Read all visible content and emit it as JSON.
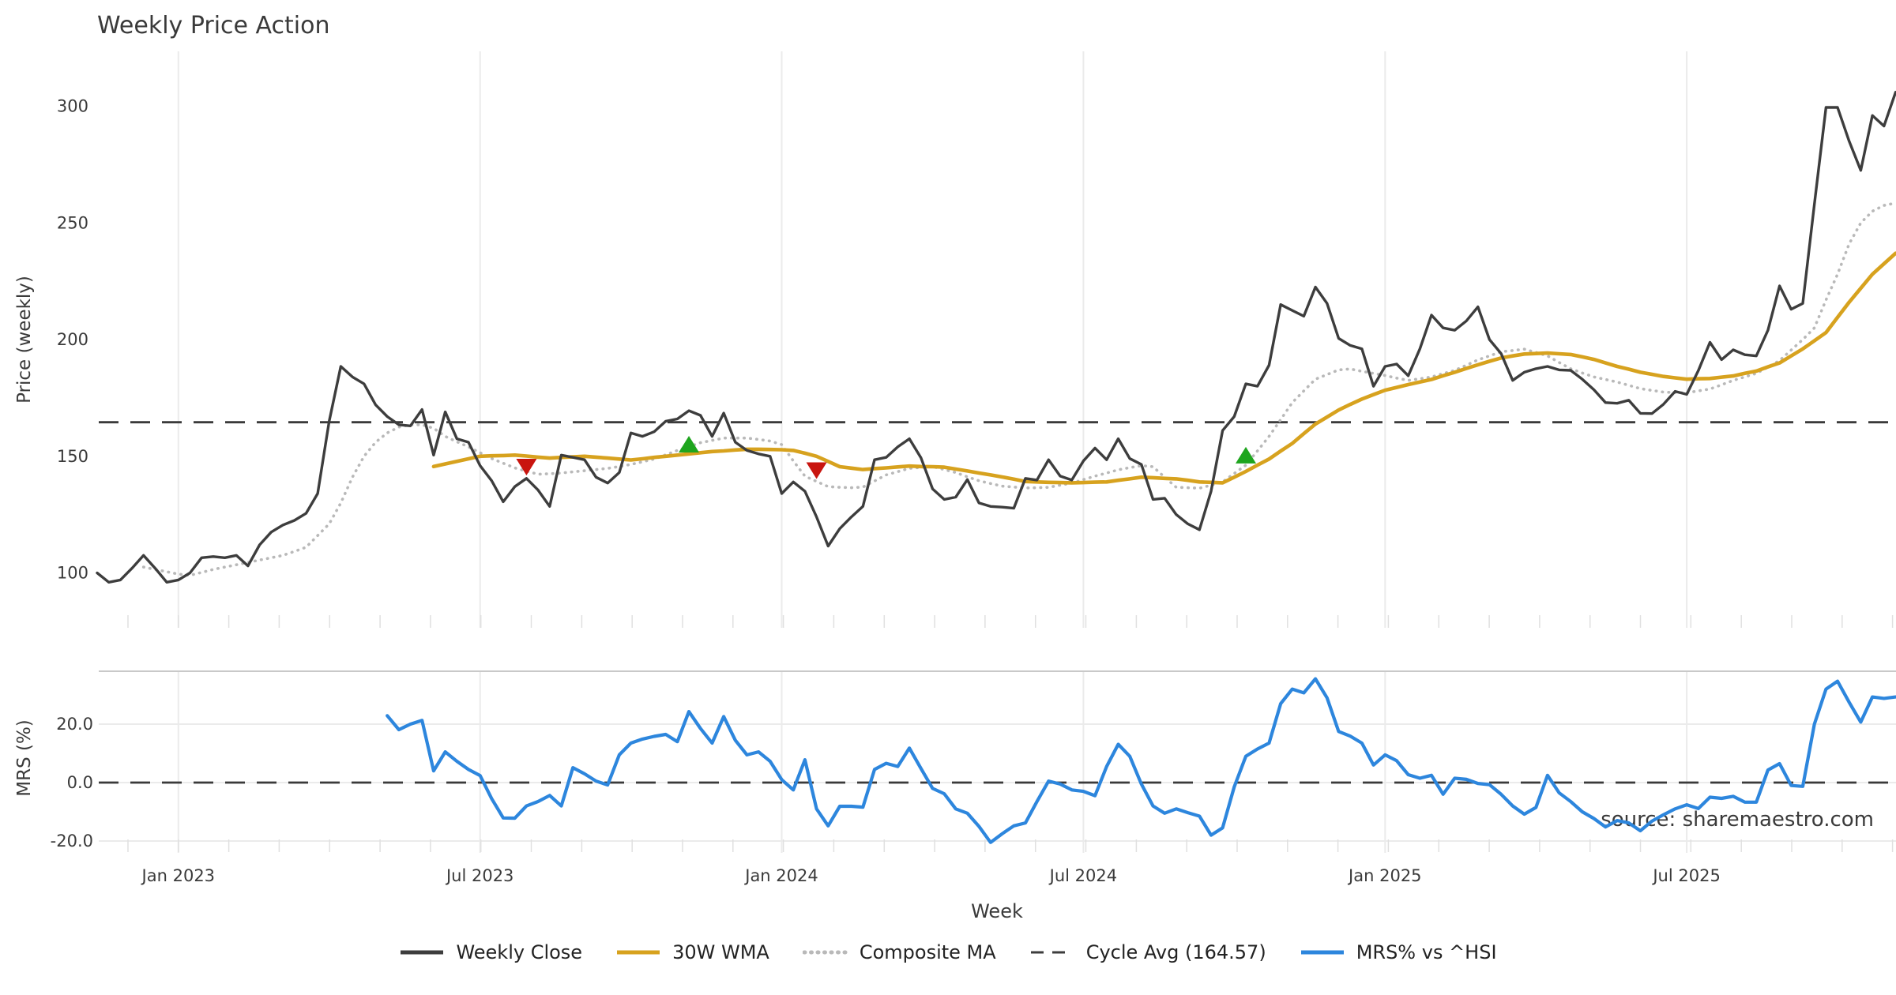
{
  "title": "Weekly Price Action",
  "source_note": "source: sharemaestro.com",
  "x_axis": {
    "label": "Week",
    "ticks": [
      {
        "label": "Jan 2023",
        "week": 7
      },
      {
        "label": "Jul 2023",
        "week": 33
      },
      {
        "label": "Jan 2024",
        "week": 59
      },
      {
        "label": "Jul 2024",
        "week": 85
      },
      {
        "label": "Jan 2025",
        "week": 111
      },
      {
        "label": "Jul 2025",
        "week": 137
      }
    ]
  },
  "price_panel": {
    "y_label": "Price (weekly)",
    "y_ticks": [
      {
        "label": "100",
        "value": 100
      },
      {
        "label": "150",
        "value": 150
      },
      {
        "label": "200",
        "value": 200
      },
      {
        "label": "250",
        "value": 250
      },
      {
        "label": "300",
        "value": 300
      }
    ]
  },
  "mrs_panel": {
    "y_label": "MRS (%)",
    "y_ticks": [
      {
        "label": "-20.0",
        "value": -20
      },
      {
        "label": "0.0",
        "value": 0
      },
      {
        "label": "20.0",
        "value": 20
      }
    ]
  },
  "legend": {
    "items": [
      {
        "label": "Weekly Close",
        "color": "#3d3d3d",
        "style": "solid"
      },
      {
        "label": "30W WMA",
        "color": "#d7a21e",
        "style": "solid"
      },
      {
        "label": "Composite MA",
        "color": "#b9b9b9",
        "style": "dotted"
      },
      {
        "label": "Cycle Avg (164.57)",
        "color": "#3d3d3d",
        "style": "dashed"
      },
      {
        "label": "MRS% vs ^HSI",
        "color": "#2d86dd",
        "style": "solid"
      }
    ]
  },
  "colors": {
    "weekly_close": "#3d3d3d",
    "wma": "#d7a21e",
    "composite": "#b9b9b9",
    "cycle_avg": "#3a3a3a",
    "mrs": "#2d86dd",
    "buy_marker": "#1ea51e",
    "sell_marker": "#c9150f",
    "grid": "#ebebeb",
    "spine": "#c9c9c9",
    "minor_tick": "#e0e0e0",
    "source_text": "#a9a9a9"
  },
  "chart_data": [
    {
      "type": "line",
      "title": "Weekly Price Action",
      "ylabel": "Price (weekly)",
      "xlabel": "Week",
      "ylim": [
        74,
        322
      ],
      "x_unit": "weekly index, week 0 = mid-Nov 2022, ticks every 26 weeks",
      "grid": "vertical-only",
      "cycle_avg": 164.57,
      "series": [
        {
          "name": "Weekly Close",
          "style": "solid",
          "start_week": 0,
          "values": [
            100,
            96,
            97,
            102,
            107.5,
            102,
            96,
            97,
            100,
            106.5,
            107,
            106.5,
            107.5,
            103,
            112,
            117.5,
            120.5,
            122.5,
            125.5,
            134,
            165,
            188.5,
            184,
            181,
            172,
            167,
            163.5,
            163,
            170,
            150.5,
            169,
            157.5,
            156,
            146,
            139.5,
            130.5,
            137,
            140.5,
            135.5,
            128.5,
            150.5,
            149.5,
            148.5,
            141,
            138.5,
            143,
            160,
            158.5,
            160.5,
            165,
            166,
            169.5,
            167.5,
            158.5,
            168.5,
            156,
            152.5,
            151,
            150,
            134,
            139,
            135,
            124,
            111.5,
            119,
            124,
            128.5,
            148.5,
            149.5,
            154,
            157.5,
            149.3,
            136,
            131.5,
            132.5,
            140,
            130,
            128.5,
            128.2,
            127.7,
            140.5,
            139.8,
            148.5,
            141.5,
            139.8,
            148,
            153.5,
            148.5,
            157.5,
            149,
            146.5,
            131.5,
            132,
            125,
            121,
            118.5,
            135,
            161,
            167,
            181,
            180,
            189,
            215,
            212.5,
            210,
            222.5,
            215.5,
            200.5,
            197.5,
            196,
            180,
            188.5,
            189.5,
            184.5,
            196,
            210.5,
            205,
            204,
            208,
            214,
            200,
            194,
            182.5,
            186,
            187.5,
            188.5,
            187,
            186.8,
            183,
            178.5,
            173,
            172.7,
            174,
            168.4,
            168.3,
            172.3,
            177.8,
            176.5,
            186.7,
            198.8,
            191.4,
            195.6,
            193.5,
            193,
            204,
            223,
            213,
            215.5,
            258,
            299.5,
            299.5,
            285,
            272.5,
            296,
            291.5,
            306
          ]
        },
        {
          "name": "30W WMA",
          "style": "solid",
          "start_week": 29,
          "values": [
            145.6,
            146.7,
            147.8,
            148.9,
            150,
            150.2,
            150.3,
            150.5,
            150.1,
            149.6,
            149.2,
            149.5,
            149.7,
            150,
            149.6,
            149.2,
            148.8,
            148.4,
            148.9,
            149.5,
            150,
            150.5,
            151,
            151.5,
            152,
            152.3,
            152.7,
            153,
            153,
            152.9,
            152.8,
            152.5,
            151.3,
            150,
            147.8,
            145.5,
            144.9,
            144.3,
            144.7,
            145,
            145.4,
            145.8,
            145.6,
            145.5,
            145.3,
            144.5,
            143.7,
            142.8,
            142,
            141.1,
            140.2,
            139.2,
            139,
            138.8,
            138.7,
            138.6,
            138.7,
            138.9,
            139,
            139.7,
            140.3,
            141,
            140.8,
            140.5,
            140.3,
            139.7,
            139,
            138.8,
            138.6,
            141,
            143.5,
            146.2,
            148.8,
            152.2,
            155.5,
            159.7,
            163.8,
            166.8,
            169.8,
            172.2,
            174.5,
            176.4,
            178.3,
            179.5,
            180.7,
            181.8,
            182.9,
            184.5,
            186,
            187.6,
            189.2,
            190.7,
            192.1,
            193,
            193.8,
            194,
            194.2,
            193.9,
            193.6,
            192.6,
            191.5,
            190,
            188.5,
            187.3,
            186,
            185.1,
            184.2,
            183.6,
            183,
            183.2,
            183.3,
            183.9,
            184.4,
            185.5,
            186.5,
            188.3,
            190,
            193,
            196,
            199.5,
            203,
            209.5,
            216,
            222,
            228,
            232.5,
            237
          ]
        },
        {
          "name": "Composite MA",
          "style": "dotted",
          "start_week": 4,
          "values": [
            102.5,
            101.5,
            100.5,
            99.5,
            99,
            100.2,
            101.5,
            102.5,
            103.5,
            104.5,
            105.5,
            106.5,
            107.5,
            109.2,
            111,
            116,
            121,
            130,
            141,
            150,
            156,
            160,
            162.5,
            163.5,
            163.5,
            162,
            158.5,
            156.2,
            154,
            151.5,
            149,
            147,
            145,
            143.6,
            142.3,
            142.5,
            142.8,
            143.3,
            143.8,
            144.3,
            144.8,
            145.6,
            146.5,
            147.6,
            148.8,
            150.6,
            152.5,
            154.1,
            155.8,
            156.8,
            157.8,
            157.8,
            157.8,
            157.2,
            156.5,
            155,
            148,
            141.5,
            139.2,
            137,
            136.7,
            136.5,
            136.8,
            139.4,
            142,
            143.4,
            144.8,
            145.2,
            145.6,
            144.3,
            143,
            141.2,
            139.5,
            138.3,
            137.2,
            136.8,
            136.4,
            136.5,
            136.7,
            137.6,
            138.5,
            140,
            141.5,
            142.8,
            144.2,
            145.1,
            146,
            145.5,
            141,
            136.7,
            136.5,
            136.3,
            137.6,
            139,
            142.6,
            146.2,
            152.3,
            158.5,
            165.7,
            173,
            178,
            183,
            185,
            187,
            187.4,
            186.4,
            185.5,
            184.6,
            183.5,
            182.5,
            183.2,
            184,
            185.4,
            186.8,
            189,
            191.3,
            193,
            194.8,
            195.3,
            195.9,
            194.5,
            193,
            190.2,
            187.5,
            185.7,
            184,
            182.9,
            181.8,
            180.4,
            179,
            178.2,
            177.5,
            177.3,
            177.2,
            178,
            178.8,
            180.6,
            182.5,
            184,
            185.5,
            188.2,
            191,
            195.5,
            200,
            205,
            217,
            228,
            241,
            250,
            255,
            257.5,
            258.5
          ]
        },
        {
          "name": "Cycle Avg (164.57)",
          "style": "dashed",
          "constant": 164.57
        }
      ],
      "markers": {
        "buy": [
          {
            "week": 51,
            "price": 155
          },
          {
            "week": 99,
            "price": 150.3
          }
        ],
        "sell": [
          {
            "week": 37,
            "price": 145.5
          },
          {
            "week": 62,
            "price": 144
          }
        ]
      }
    },
    {
      "type": "line",
      "ylabel": "MRS (%)",
      "ylim": [
        -23.5,
        38
      ],
      "grid": "vertical-and-horizontal",
      "zero_line": "dashed",
      "series": [
        {
          "name": "MRS% vs ^HSI",
          "style": "solid",
          "start_week": 25,
          "values": [
            22.9,
            18.1,
            20,
            21.3,
            4,
            10.5,
            7.3,
            4.5,
            2.4,
            -5.5,
            -12.1,
            -12.2,
            -8,
            -6.5,
            -4.4,
            -8,
            5.1,
            3,
            0.5,
            -0.8,
            9.5,
            13.5,
            14.9,
            15.8,
            16.5,
            14,
            24.3,
            18.5,
            13.5,
            22.6,
            14.5,
            9.5,
            10.5,
            7.3,
            1,
            -2.5,
            7.8,
            -9,
            -14.8,
            -8.1,
            -8.1,
            -8.4,
            4.5,
            6.6,
            5.5,
            11.8,
            4.8,
            -2,
            -3.8,
            -9,
            -10.5,
            -15,
            -20.5,
            -17.5,
            -14.8,
            -13.8,
            -6.5,
            0.5,
            -0.5,
            -2.5,
            -3,
            -4.5,
            5.5,
            13.1,
            9,
            -0.5,
            -8,
            -10.5,
            -9,
            -10.3,
            -11.5,
            -18,
            -15.5,
            -1.5,
            9,
            11.5,
            13.5,
            27,
            32,
            30.7,
            35.5,
            29,
            17.5,
            15.9,
            13.5,
            6,
            9.5,
            7.5,
            2.7,
            1.5,
            2.5,
            -4,
            1.5,
            1.1,
            -0.3,
            -0.7,
            -4,
            -8,
            -10.8,
            -8.5,
            2.5,
            -3.5,
            -6.5,
            -10,
            -12.3,
            -15.2,
            -13,
            -13.8,
            -16.5,
            -13.2,
            -11,
            -9,
            -7.6,
            -8.9,
            -5,
            -5.4,
            -4.7,
            -6.7,
            -6.7,
            4.3,
            6.5,
            -1,
            -1.3,
            20,
            32,
            34.7,
            27.5,
            20.7,
            29.3,
            28.8,
            29.3
          ]
        }
      ]
    }
  ]
}
